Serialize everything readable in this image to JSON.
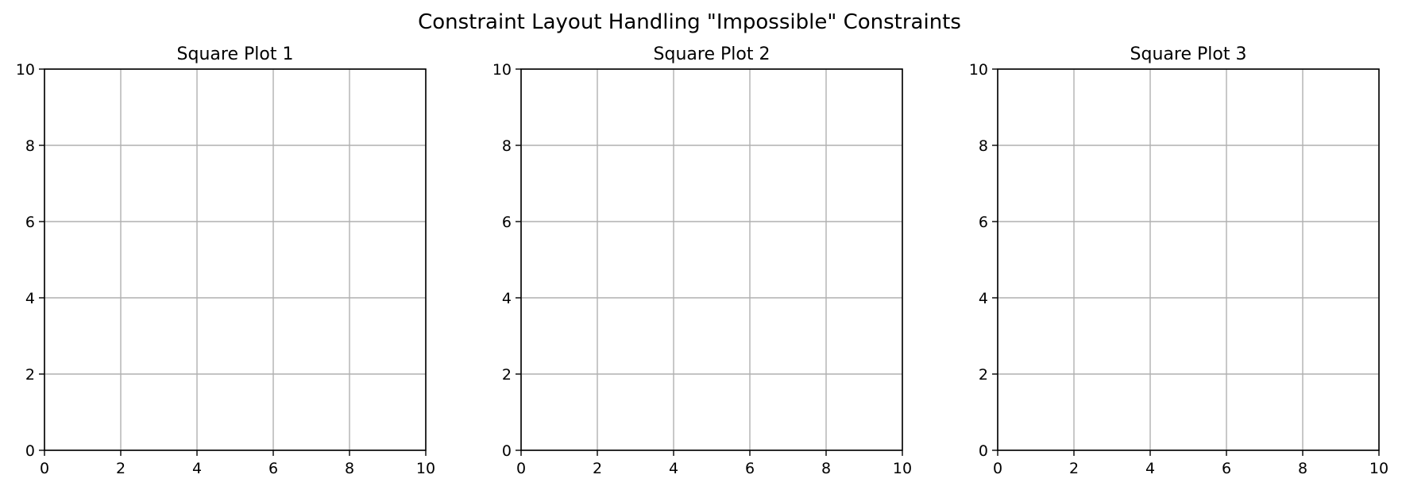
{
  "figure": {
    "suptitle": "Constraint Layout Handling \"Impossible\" Constraints"
  },
  "chart_data": [
    {
      "type": "scatter",
      "title": "Square Plot 1",
      "xlabel": "",
      "ylabel": "",
      "xlim": [
        0,
        10
      ],
      "ylim": [
        0,
        10
      ],
      "xticks": [
        0,
        2,
        4,
        6,
        8,
        10
      ],
      "yticks": [
        0,
        2,
        4,
        6,
        8,
        10
      ],
      "grid": true,
      "series": []
    },
    {
      "type": "scatter",
      "title": "Square Plot 2",
      "xlabel": "",
      "ylabel": "",
      "xlim": [
        0,
        10
      ],
      "ylim": [
        0,
        10
      ],
      "xticks": [
        0,
        2,
        4,
        6,
        8,
        10
      ],
      "yticks": [
        0,
        2,
        4,
        6,
        8,
        10
      ],
      "grid": true,
      "series": []
    },
    {
      "type": "scatter",
      "title": "Square Plot 3",
      "xlabel": "",
      "ylabel": "",
      "xlim": [
        0,
        10
      ],
      "ylim": [
        0,
        10
      ],
      "xticks": [
        0,
        2,
        4,
        6,
        8,
        10
      ],
      "yticks": [
        0,
        2,
        4,
        6,
        8,
        10
      ],
      "grid": true,
      "series": []
    }
  ],
  "colors": {
    "grid": "#b0b0b0",
    "axes": "#000000",
    "background": "#ffffff"
  }
}
